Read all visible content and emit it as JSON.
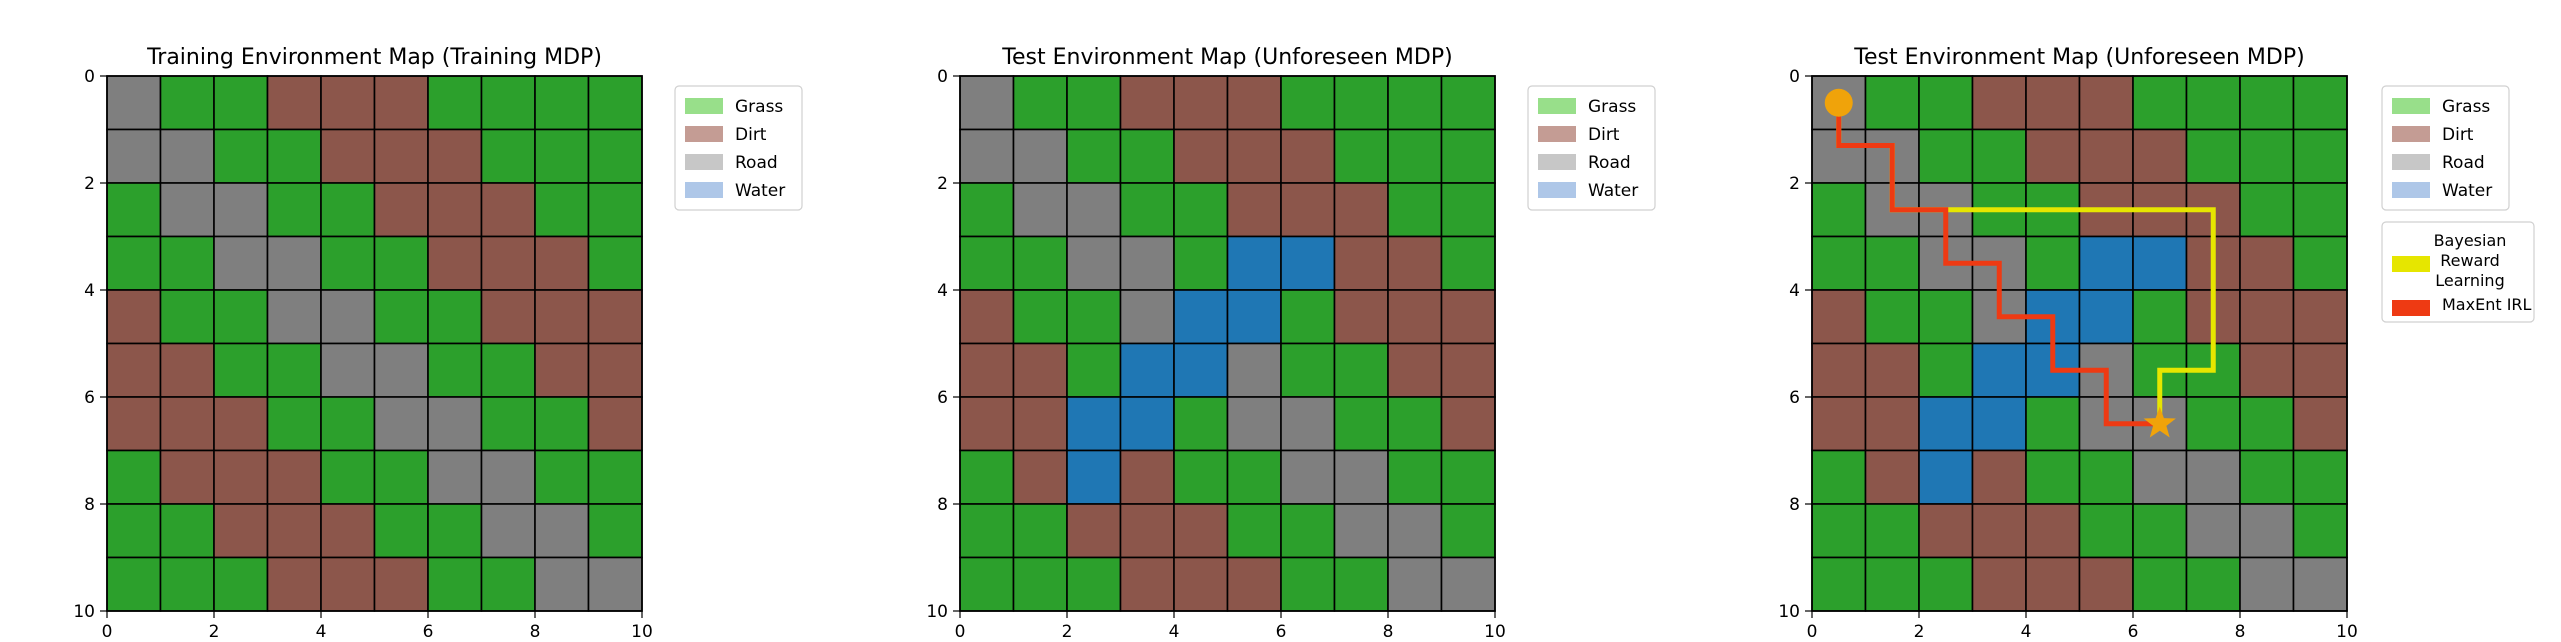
{
  "colors": {
    "grass": "#2ca02c",
    "dirt": "#8c564b",
    "road": "#7f7f7f",
    "water": "#1f77b4",
    "legend_grass": "#98df8a",
    "legend_dirt": "#c49c94",
    "legend_road": "#c7c7c7",
    "legend_water": "#aec7e8",
    "bayesian_path": "#e6e600",
    "maxent_path": "#ee3a13",
    "start_marker": "#f0a30a",
    "goal_marker": "#f0a30a"
  },
  "chart_data": [
    {
      "type": "heatmap",
      "title": "Training Environment Map (Training MDP)",
      "xlim": [
        0,
        10
      ],
      "ylim": [
        10,
        0
      ],
      "xticks": [
        0,
        2,
        4,
        6,
        8,
        10
      ],
      "yticks": [
        0,
        2,
        4,
        6,
        8,
        10
      ],
      "legend": [
        "Grass",
        "Dirt",
        "Road",
        "Water"
      ],
      "legend_position": "outside-top-right",
      "grid_key": {
        "G": "Grass",
        "D": "Dirt",
        "R": "Road",
        "W": "Water"
      },
      "grid": [
        "RGGDDDGGGG",
        "RRGGDDDGGG",
        "GRRGGDDDGG",
        "GGRRGGDDDG",
        "DGGRRGGDDD",
        "DDGGRRGGDD",
        "DDDGGRRGGD",
        "GDDDGGRRGG",
        "GGDDDGGRRG",
        "GGGDDDGGRR"
      ]
    },
    {
      "type": "heatmap",
      "title": "Test Environment Map (Unforeseen MDP)",
      "xlim": [
        0,
        10
      ],
      "ylim": [
        10,
        0
      ],
      "xticks": [
        0,
        2,
        4,
        6,
        8,
        10
      ],
      "yticks": [
        0,
        2,
        4,
        6,
        8,
        10
      ],
      "legend": [
        "Grass",
        "Dirt",
        "Road",
        "Water"
      ],
      "legend_position": "outside-top-right",
      "grid_key": {
        "G": "Grass",
        "D": "Dirt",
        "R": "Road",
        "W": "Water"
      },
      "grid": [
        "RGGDDDGGGG",
        "RRGGDDDGGG",
        "GRRGGDDDGG",
        "GGRRGWWDDG",
        "DGGRWWGDDD",
        "DDGWWRGGDD",
        "DDWWGRRGGD",
        "GDWDGGRRGG",
        "GGDDDGGRRG",
        "GGGDDDGGRR"
      ]
    },
    {
      "type": "heatmap",
      "title": "Test Environment Map (Unforeseen MDP)",
      "xlim": [
        0,
        10
      ],
      "ylim": [
        10,
        0
      ],
      "xticks": [
        0,
        2,
        4,
        6,
        8,
        10
      ],
      "yticks": [
        0,
        2,
        4,
        6,
        8,
        10
      ],
      "legend": [
        "Grass",
        "Dirt",
        "Road",
        "Water"
      ],
      "legend_position": "outside-top-right",
      "grid_key": {
        "G": "Grass",
        "D": "Dirt",
        "R": "Road",
        "W": "Water"
      },
      "grid": [
        "RGGDDDGGGG",
        "RRGGDDDGGG",
        "GRRGGDDDGG",
        "GGRRGWWDDG",
        "DGGRWWGDDD",
        "DDGWWRGGDD",
        "DDWWGRRGGD",
        "GDWDGGRRGG",
        "GGDDDGGRRG",
        "GGGDDDGGRR"
      ],
      "start": {
        "x": 0.5,
        "y": 0.5
      },
      "goal": {
        "x": 6.5,
        "y": 6.5
      },
      "paths": [
        {
          "name": "Bayesian Reward Learning",
          "legend_lines": [
            "Bayesian",
            "Reward",
            "Learning"
          ],
          "color_key": "bayesian_path",
          "points": [
            [
              0.5,
              0.5
            ],
            [
              0.5,
              1.3
            ],
            [
              1.5,
              1.3
            ],
            [
              1.5,
              2.5
            ],
            [
              7.5,
              2.5
            ],
            [
              7.5,
              5.5
            ],
            [
              6.5,
              5.5
            ],
            [
              6.5,
              6.5
            ]
          ]
        },
        {
          "name": "MaxEnt IRL",
          "legend_lines": [
            "MaxEnt IRL"
          ],
          "color_key": "maxent_path",
          "points": [
            [
              0.5,
              0.5
            ],
            [
              0.5,
              1.3
            ],
            [
              1.5,
              1.3
            ],
            [
              1.5,
              2.5
            ],
            [
              2.5,
              2.5
            ],
            [
              2.5,
              3.5
            ],
            [
              3.5,
              3.5
            ],
            [
              3.5,
              4.5
            ],
            [
              4.5,
              4.5
            ],
            [
              4.5,
              5.5
            ],
            [
              5.5,
              5.5
            ],
            [
              5.5,
              6.5
            ],
            [
              6.5,
              6.5
            ]
          ]
        }
      ]
    }
  ]
}
